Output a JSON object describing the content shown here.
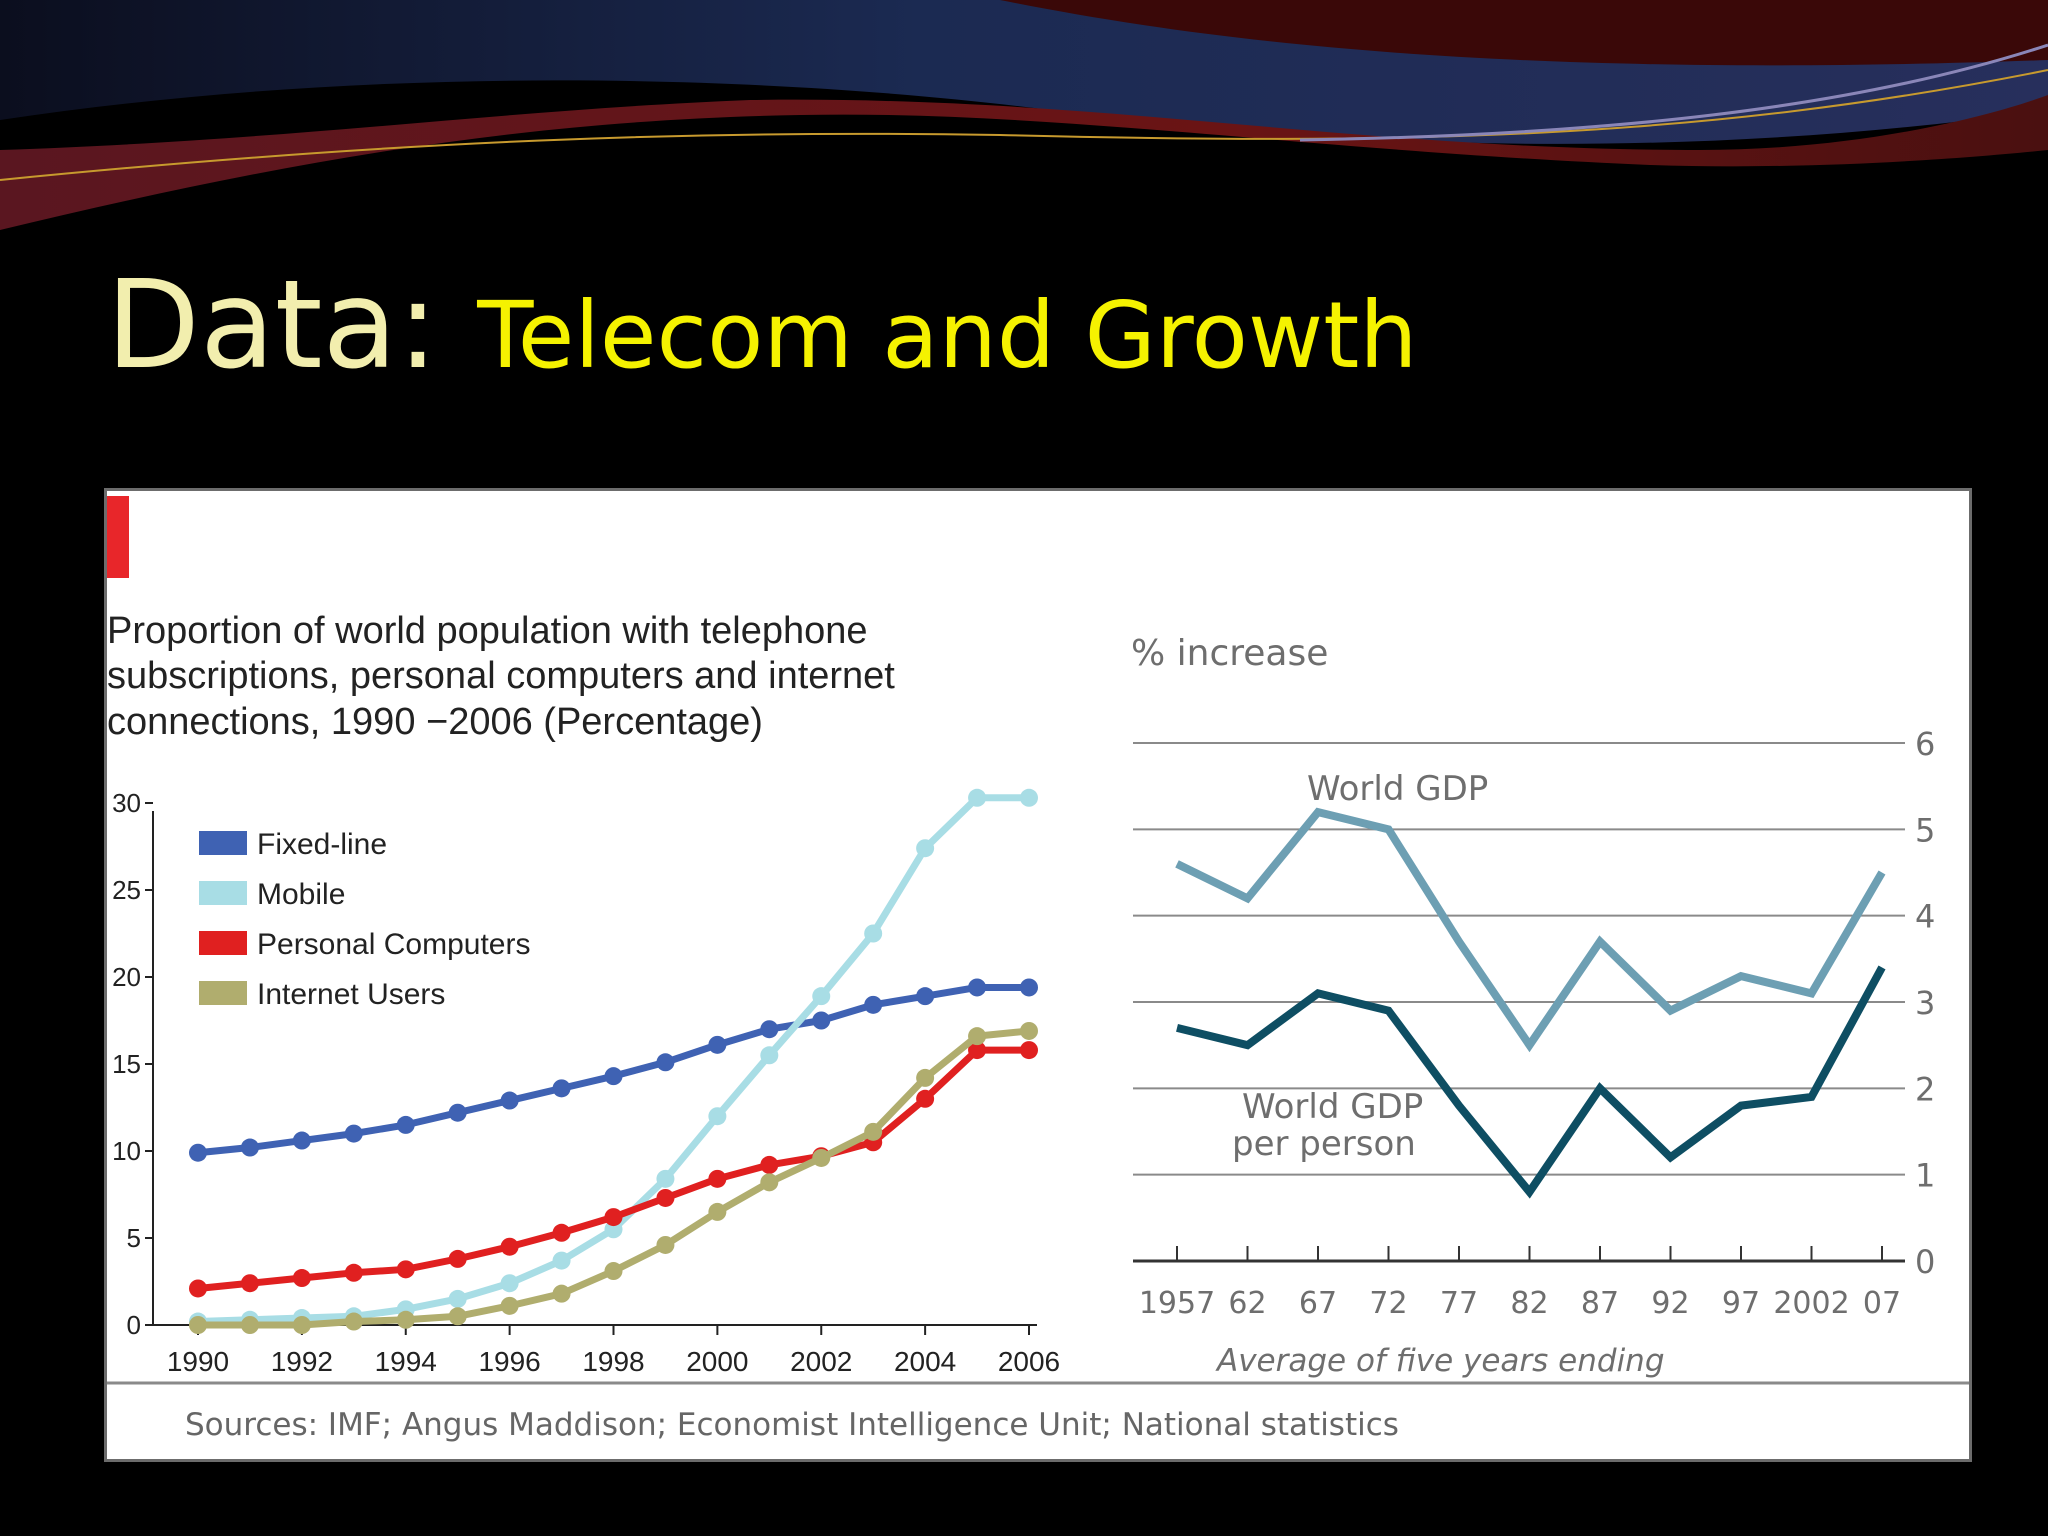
{
  "slide": {
    "title": "Data:",
    "subtitle": "Telecom and Growth",
    "colors": {
      "title": "#f2eeae",
      "subtitle": "#f5f200",
      "background": "#000000"
    }
  },
  "chart_data": [
    {
      "type": "line",
      "title_lines": [
        "Proportion of world population with telephone",
        "subscriptions, personal computers and internet",
        "connections, 1990 −2006   (Percentage)"
      ],
      "x": [
        1990,
        1991,
        1992,
        1993,
        1994,
        1995,
        1996,
        1997,
        1998,
        1999,
        2000,
        2001,
        2002,
        2003,
        2004,
        2005,
        2006
      ],
      "x_ticks": [
        "1990",
        "1992",
        "1994",
        "1996",
        "1998",
        "2000",
        "2002",
        "2004",
        "2006"
      ],
      "y_ticks": [
        "0",
        "5",
        "10",
        "15",
        "20",
        "25",
        "30"
      ],
      "xlim": [
        1990,
        2006
      ],
      "ylim": [
        0,
        30
      ],
      "legend_position": "top-left",
      "grid": false,
      "series": [
        {
          "name": "Fixed-line",
          "color": "#3f62b3",
          "values": [
            9.9,
            10.2,
            10.6,
            11.0,
            11.5,
            12.2,
            12.9,
            13.6,
            14.3,
            15.1,
            16.1,
            17.0,
            17.5,
            18.4,
            18.9,
            19.4,
            19.4
          ]
        },
        {
          "name": "Mobile",
          "color": "#a8dde5",
          "values": [
            0.2,
            0.3,
            0.4,
            0.5,
            0.9,
            1.5,
            2.4,
            3.7,
            5.5,
            8.4,
            12.0,
            15.5,
            18.9,
            22.5,
            27.4,
            30.3,
            30.3
          ]
        },
        {
          "name": "Personal Computers",
          "color": "#e02020",
          "values": [
            2.1,
            2.4,
            2.7,
            3.0,
            3.2,
            3.8,
            4.5,
            5.3,
            6.2,
            7.3,
            8.4,
            9.2,
            9.7,
            10.5,
            13.0,
            15.8,
            15.8
          ]
        },
        {
          "name": "Internet Users",
          "color": "#b0ad6e",
          "values": [
            0.0,
            0.0,
            0.0,
            0.2,
            0.3,
            0.5,
            1.1,
            1.8,
            3.1,
            4.6,
            6.5,
            8.2,
            9.6,
            11.1,
            14.2,
            16.6,
            16.9
          ]
        }
      ]
    },
    {
      "type": "line",
      "ylabel": "% increase",
      "x_ticks": [
        "1957",
        "62",
        "67",
        "72",
        "77",
        "82",
        "87",
        "92",
        "97",
        "2002",
        "07"
      ],
      "xlabel": "Average of five years ending",
      "y_ticks": [
        "0",
        "1",
        "2",
        "3",
        "4",
        "5",
        "6"
      ],
      "ylim": [
        0,
        6
      ],
      "grid": true,
      "series": [
        {
          "name": "World GDP",
          "color": "#6d9fb3",
          "values": [
            4.6,
            4.2,
            5.2,
            5.0,
            3.7,
            2.5,
            3.7,
            2.9,
            3.3,
            3.1,
            4.5
          ]
        },
        {
          "name": "World GDP\nper person",
          "color": "#0e4e63",
          "values": [
            2.7,
            2.5,
            3.1,
            2.9,
            1.8,
            0.8,
            2.0,
            1.2,
            1.8,
            1.9,
            3.4
          ]
        }
      ]
    }
  ],
  "source_note": "Sources: IMF; Angus Maddison; Economist Intelligence Unit; National statistics"
}
